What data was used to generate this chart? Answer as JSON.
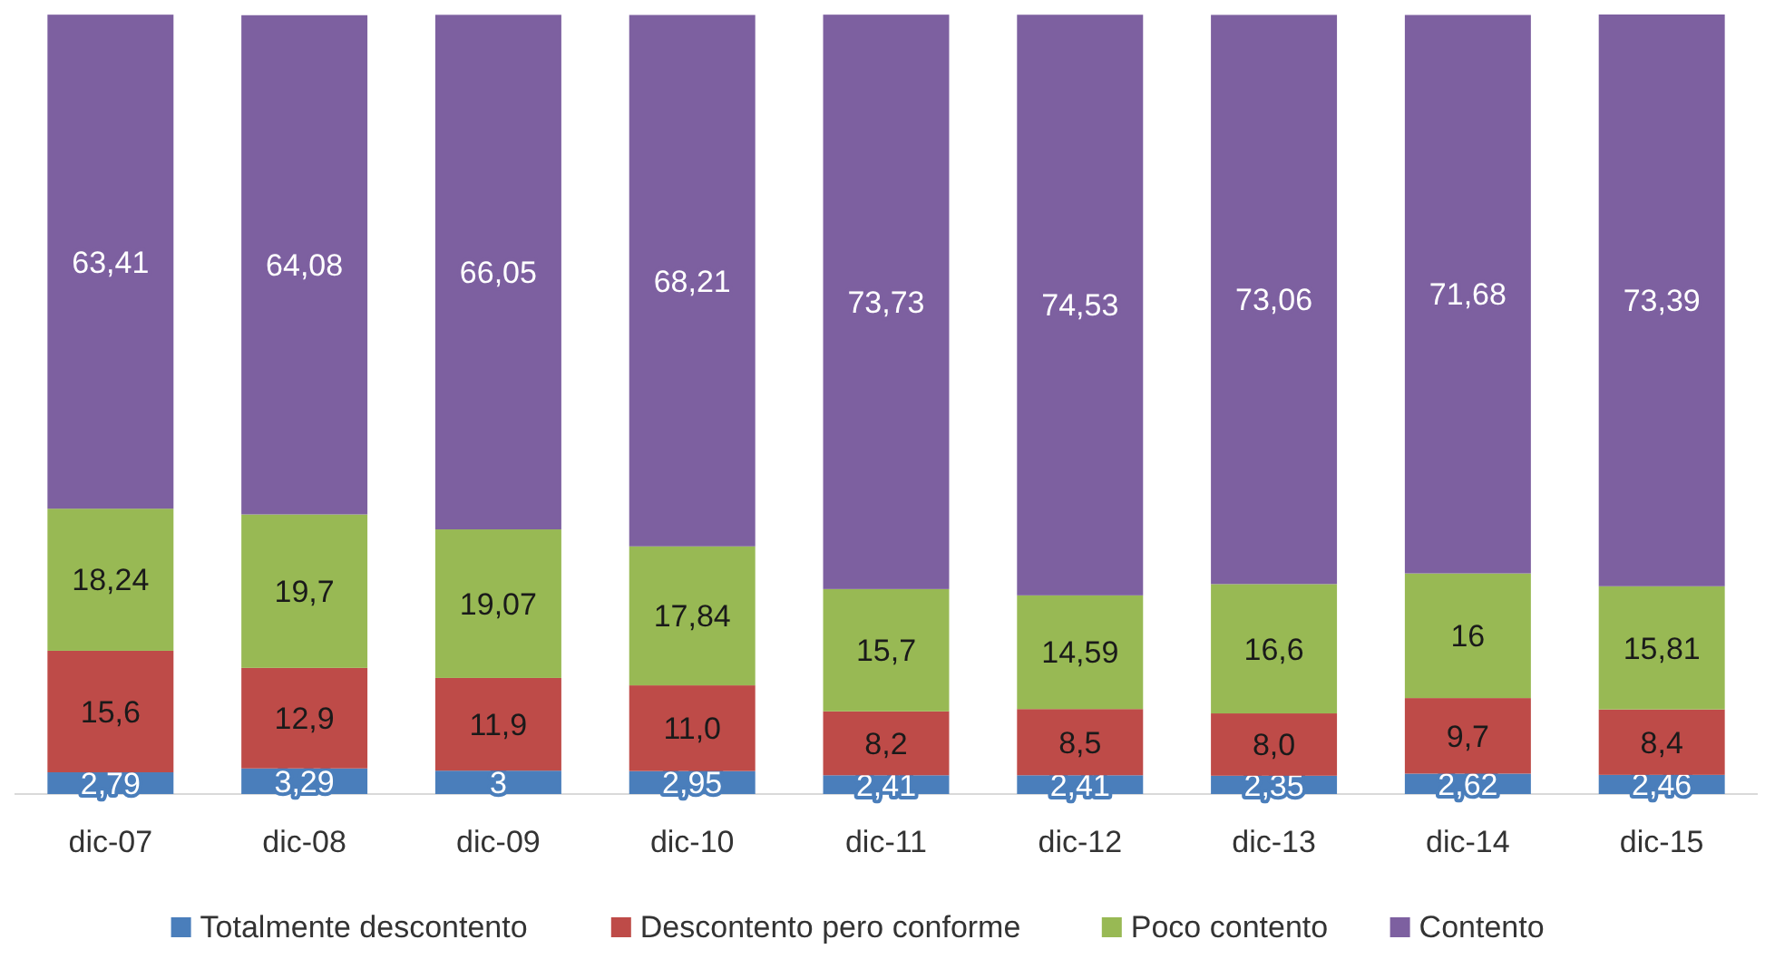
{
  "chart_data": {
    "type": "bar",
    "stacked": true,
    "data_labels": false,
    "legend": "bottom",
    "categories": [
      "dic-07",
      "dic-08",
      "dic-09",
      "dic-10",
      "dic-11",
      "dic-12",
      "dic-13",
      "dic-14",
      "dic-15"
    ],
    "series": [
      {
        "name": "Totalmente descontento",
        "color": "#4a7ebb",
        "values": [
          2.79,
          3.29,
          3,
          2.95,
          2.41,
          2.41,
          2.35,
          2.62,
          2.46
        ],
        "value_labels": [
          "2,79",
          "3,29",
          "3",
          "2,95",
          "2,41",
          "2,41",
          "2,35",
          "2,62",
          "2,46"
        ]
      },
      {
        "name": "Descontento pero conforme",
        "color": "#be4b48",
        "values": [
          15.6,
          12.9,
          11.9,
          11.0,
          8.2,
          8.5,
          8.0,
          9.7,
          8.4
        ],
        "value_labels": [
          "15,6",
          "12,9",
          "11,9",
          "11,0",
          "8,2",
          "8,5",
          "8,0",
          "9,7",
          "8,4"
        ]
      },
      {
        "name": "Poco contento",
        "color": "#98b954",
        "values": [
          18.24,
          19.7,
          19.07,
          17.84,
          15.7,
          14.59,
          16.6,
          16,
          15.81
        ],
        "value_labels": [
          "18,24",
          "19,7",
          "19,07",
          "17,84",
          "15,7",
          "14,59",
          "16,6",
          "16",
          "15,81"
        ]
      },
      {
        "name": "Contento",
        "color": "#7d60a0",
        "values": [
          63.41,
          64.08,
          66.05,
          68.21,
          73.73,
          74.53,
          73.06,
          71.68,
          73.39
        ],
        "value_labels": [
          "63,41",
          "64,08",
          "66,05",
          "68,21",
          "73,73",
          "74,53",
          "73,06",
          "71,68",
          "73,39"
        ]
      }
    ]
  }
}
